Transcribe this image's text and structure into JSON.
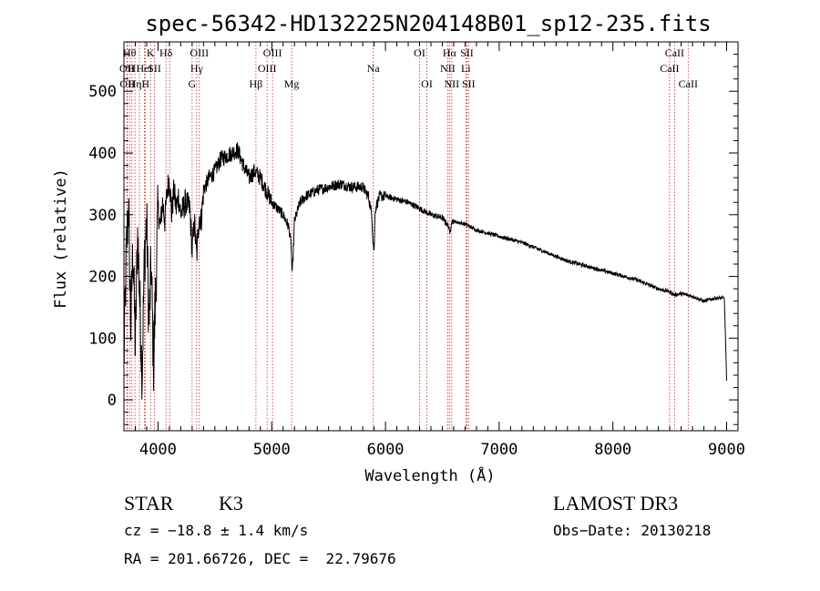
{
  "chart_data": {
    "type": "line",
    "title": "spec-56342-HD132225N204148B01_sp12-235.fits",
    "xlabel": "Wavelength (Å)",
    "ylabel": "Flux (relative)",
    "xlim": [
      3700,
      9100
    ],
    "ylim": [
      -50,
      580
    ],
    "xticks": [
      4000,
      5000,
      6000,
      7000,
      8000,
      9000
    ],
    "yticks": [
      0,
      100,
      200,
      300,
      400,
      500
    ],
    "xtick_labels": [
      "4000",
      "5000",
      "6000",
      "7000",
      "8000",
      "9000"
    ],
    "ytick_labels": [
      "0",
      "100",
      "200",
      "300",
      "400",
      "500"
    ],
    "series": [
      {
        "name": "flux",
        "anchors": [
          [
            3700,
            60
          ],
          [
            3720,
            230
          ],
          [
            3740,
            320
          ],
          [
            3760,
            120
          ],
          [
            3780,
            250
          ],
          [
            3800,
            80
          ],
          [
            3820,
            270
          ],
          [
            3840,
            160
          ],
          [
            3860,
            40
          ],
          [
            3880,
            230
          ],
          [
            3900,
            290
          ],
          [
            3920,
            120
          ],
          [
            3940,
            220
          ],
          [
            3960,
            60
          ],
          [
            3980,
            180
          ],
          [
            4000,
            310
          ],
          [
            4020,
            280
          ],
          [
            4040,
            320
          ],
          [
            4060,
            290
          ],
          [
            4080,
            340
          ],
          [
            4100,
            360
          ],
          [
            4120,
            300
          ],
          [
            4140,
            340
          ],
          [
            4160,
            310
          ],
          [
            4180,
            330
          ],
          [
            4200,
            300
          ],
          [
            4240,
            320
          ],
          [
            4280,
            310
          ],
          [
            4300,
            240
          ],
          [
            4320,
            290
          ],
          [
            4340,
            230
          ],
          [
            4360,
            300
          ],
          [
            4380,
            290
          ],
          [
            4400,
            340
          ],
          [
            4450,
            360
          ],
          [
            4500,
            370
          ],
          [
            4550,
            390
          ],
          [
            4600,
            395
          ],
          [
            4650,
            400
          ],
          [
            4700,
            405
          ],
          [
            4750,
            380
          ],
          [
            4800,
            360
          ],
          [
            4850,
            370
          ],
          [
            4900,
            360
          ],
          [
            4950,
            340
          ],
          [
            5000,
            320
          ],
          [
            5050,
            310
          ],
          [
            5100,
            300
          ],
          [
            5150,
            280
          ],
          [
            5170,
            250
          ],
          [
            5180,
            200
          ],
          [
            5200,
            290
          ],
          [
            5250,
            320
          ],
          [
            5300,
            330
          ],
          [
            5400,
            340
          ],
          [
            5500,
            345
          ],
          [
            5600,
            350
          ],
          [
            5700,
            345
          ],
          [
            5800,
            345
          ],
          [
            5850,
            330
          ],
          [
            5880,
            300
          ],
          [
            5890,
            260
          ],
          [
            5900,
            240
          ],
          [
            5910,
            310
          ],
          [
            5950,
            330
          ],
          [
            6000,
            330
          ],
          [
            6100,
            325
          ],
          [
            6200,
            320
          ],
          [
            6300,
            310
          ],
          [
            6400,
            300
          ],
          [
            6500,
            295
          ],
          [
            6560,
            280
          ],
          [
            6565,
            265
          ],
          [
            6580,
            290
          ],
          [
            6700,
            285
          ],
          [
            6800,
            275
          ],
          [
            7000,
            265
          ],
          [
            7200,
            255
          ],
          [
            7400,
            240
          ],
          [
            7600,
            225
          ],
          [
            7800,
            215
          ],
          [
            8000,
            205
          ],
          [
            8200,
            195
          ],
          [
            8400,
            180
          ],
          [
            8500,
            175
          ],
          [
            8540,
            170
          ],
          [
            8600,
            172
          ],
          [
            8700,
            168
          ],
          [
            8800,
            160
          ],
          [
            8900,
            165
          ],
          [
            8980,
            165
          ],
          [
            8990,
            100
          ],
          [
            9000,
            30
          ]
        ],
        "color": "#000000"
      }
    ],
    "line_markers": [
      {
        "wavelength": 3727,
        "label": "OII",
        "row": 2
      },
      {
        "wavelength": 3730,
        "label": "OII",
        "row": 3
      },
      {
        "wavelength": 3750,
        "label": "Hθ",
        "row": 1
      },
      {
        "wavelength": 3770,
        "label": "H",
        "row": 2
      },
      {
        "wavelength": 3797,
        "label": "Hη",
        "row": 3
      },
      {
        "wavelength": 3836,
        "label": "",
        "row": 0
      },
      {
        "wavelength": 3880,
        "label": "HeI",
        "row": 2
      },
      {
        "wavelength": 3890,
        "label": "H",
        "row": 3
      },
      {
        "wavelength": 3934,
        "label": "K",
        "row": 1
      },
      {
        "wavelength": 3969,
        "label": "SII",
        "row": 2
      },
      {
        "wavelength": 4070,
        "label": "Hδ",
        "row": 1
      },
      {
        "wavelength": 4102,
        "label": "",
        "row": 0
      },
      {
        "wavelength": 4300,
        "label": "G",
        "row": 3
      },
      {
        "wavelength": 4340,
        "label": "Hγ",
        "row": 2
      },
      {
        "wavelength": 4363,
        "label": "OIII",
        "row": 1
      },
      {
        "wavelength": 4861,
        "label": "Hβ",
        "row": 3
      },
      {
        "wavelength": 4959,
        "label": "OIII",
        "row": 2
      },
      {
        "wavelength": 5007,
        "label": "OIII",
        "row": 1
      },
      {
        "wavelength": 5175,
        "label": "Mg",
        "row": 3
      },
      {
        "wavelength": 5893,
        "label": "Na",
        "row": 2
      },
      {
        "wavelength": 6300,
        "label": "OI",
        "row": 1
      },
      {
        "wavelength": 6364,
        "label": "OI",
        "row": 3
      },
      {
        "wavelength": 6548,
        "label": "NII",
        "row": 2
      },
      {
        "wavelength": 6563,
        "label": "Hα",
        "row": 1
      },
      {
        "wavelength": 6583,
        "label": "NII",
        "row": 3
      },
      {
        "wavelength": 6707,
        "label": "Li",
        "row": 2
      },
      {
        "wavelength": 6716,
        "label": "SII",
        "row": 1
      },
      {
        "wavelength": 6731,
        "label": "SII",
        "row": 3
      },
      {
        "wavelength": 8498,
        "label": "CaII",
        "row": 2
      },
      {
        "wavelength": 8542,
        "label": "CaII",
        "row": 1
      },
      {
        "wavelength": 8662,
        "label": "CaII",
        "row": 3
      }
    ],
    "marker_color": "#cc2222"
  },
  "info": {
    "class": "STAR",
    "subclass": "K3",
    "survey": "LAMOST DR3",
    "cz": "cz = −18.8 ± 1.4 km/s",
    "obs_date": "Obs−Date: 20130218",
    "radec": "RA = 201.66726, DEC =  22.79676"
  }
}
